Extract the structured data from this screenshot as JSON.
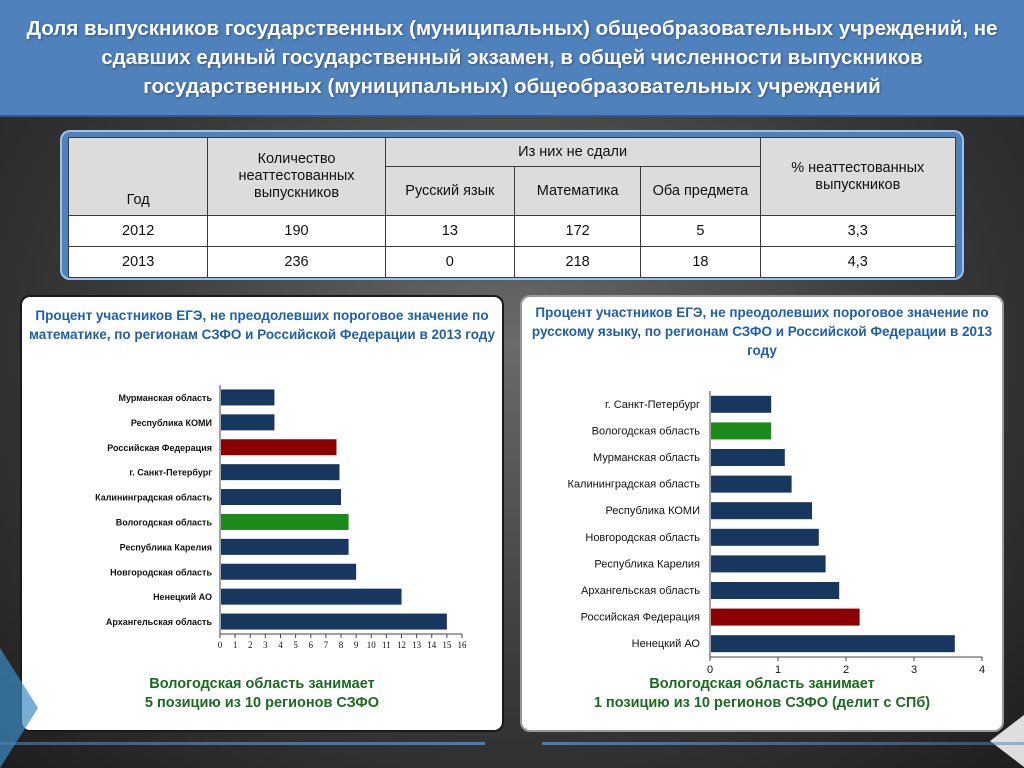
{
  "title": "Доля выпускников государственных (муниципальных) общеобразовательных учреждений, не сдавших единый государственный экзамен, в общей численности выпускников государственных (муниципальных) общеобразовательных учреждений",
  "table": {
    "headers": {
      "year": "Год",
      "count": "Количество неаттестованных выпускников",
      "group": "Из них не сдали",
      "russian": "Русский язык",
      "math": "Математика",
      "both": "Оба предмета",
      "percent": "% неаттестованных выпускников"
    },
    "rows": [
      [
        "2012",
        "190",
        "13",
        "172",
        "5",
        "3,3"
      ],
      [
        "2013",
        "236",
        "0",
        "218",
        "18",
        "4,3"
      ]
    ]
  },
  "colors": {
    "bar_default": "#17375e",
    "bar_russia": "#8b0000",
    "bar_vologda": "#1b8a1b",
    "title_blue": "#1f5fa8",
    "footer_green": "#1a6a20",
    "header_bar": "#4f81bd"
  },
  "panels": {
    "left": {
      "title": "Процент участников ЕГЭ, не преодолевших пороговое значение по математике, по регионам СЗФО и Российской Федерации в 2013 году",
      "footer_line1": "Вологодская область занимает",
      "footer_line2": "5 позицию из 10 регионов СЗФО"
    },
    "right": {
      "title": "Процент участников ЕГЭ, не преодолевших пороговое значение по русскому языку, по регионам СЗФО и Российской Федерации в 2013 году",
      "footer_line1": "Вологодская область занимает",
      "footer_line2": "1 позицию из 10 регионов СЗФО (делит с СПб)"
    }
  },
  "chart_data": [
    {
      "type": "bar",
      "orientation": "horizontal",
      "title": "Процент участников ЕГЭ, не преодолевших пороговое значение по математике, по регионам СЗФО и Российской Федерации в 2013 году",
      "categories": [
        "Мурманская область",
        "Республика КОМИ",
        "Российская Федерация",
        "г. Санкт-Петербург",
        "Калининградская область",
        "Вологодская область",
        "Республика Карелия",
        "Новгородская область",
        "Ненецкий АО",
        "Архангельская область"
      ],
      "values": [
        3.6,
        3.6,
        7.7,
        7.9,
        8.0,
        8.5,
        8.5,
        9.0,
        12.0,
        15.0
      ],
      "highlight": {
        "Российская Федерация": "bar_russia",
        "Вологодская область": "bar_vologda"
      },
      "xlim": [
        0,
        16
      ],
      "xticks": [
        "0",
        "1",
        "2",
        "3",
        "4",
        "5",
        "6",
        "7",
        "8",
        "9",
        "10",
        "11",
        "12",
        "13",
        "14",
        "15",
        "16"
      ],
      "grid": false,
      "legend": "none"
    },
    {
      "type": "bar",
      "orientation": "horizontal",
      "title": "Процент участников ЕГЭ, не преодолевших пороговое значение по русскому языку, по регионам СЗФО и Российской Федерации в 2013 году",
      "categories": [
        "г. Санкт-Петербург",
        "Вологодская область",
        "Мурманская область",
        "Калининградская область",
        "Республика КОМИ",
        "Новгородская область",
        "Республика Карелия",
        "Архангельская область",
        "Российская Федерация",
        "Ненецкий АО"
      ],
      "values": [
        0.9,
        0.9,
        1.1,
        1.2,
        1.5,
        1.6,
        1.7,
        1.9,
        2.2,
        3.6
      ],
      "highlight": {
        "Российская Федерация": "bar_russia",
        "Вологодская область": "bar_vologda"
      },
      "xlim": [
        0,
        4
      ],
      "xticks": [
        "0",
        "1",
        "2",
        "3",
        "4"
      ],
      "grid": false,
      "legend": "none"
    }
  ]
}
